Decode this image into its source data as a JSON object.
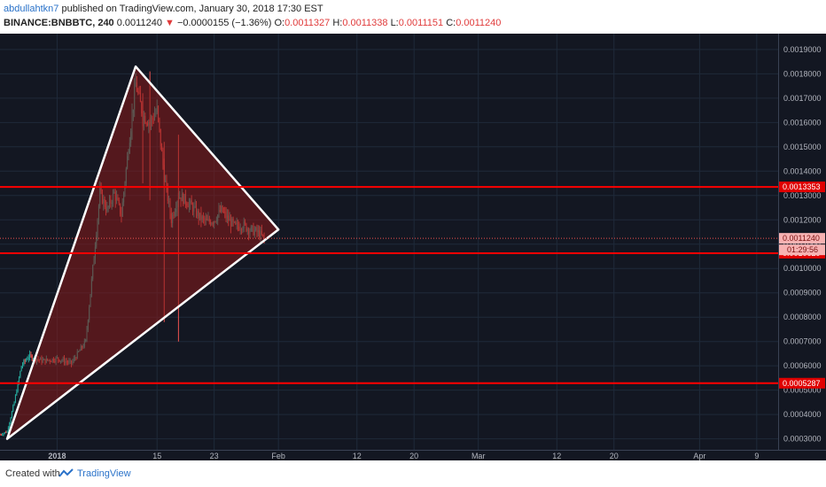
{
  "header": {
    "author": "abdullahtkn7",
    "published_text": "published on TradingView.com, January 30, 2018 17:30 EST",
    "symbol": "BINANCE:BNBBTC, 240",
    "last": "0.0011240",
    "arrow": "▼",
    "change": "−0.0000155 (−1.36%)",
    "o_label": "O:",
    "o_value": "0.0011327",
    "h_label": "H:",
    "h_value": "0.0011338",
    "l_label": "L:",
    "l_value": "0.0011151",
    "c_label": "C:",
    "c_value": "0.0011240"
  },
  "footer": {
    "created_with": "Created with",
    "brand": "TradingView"
  },
  "colors": {
    "background": "#131722",
    "grid": "#1f2a3a",
    "up": "#26a69a",
    "down": "#ef5350",
    "level_line": "#ff0000",
    "triangle_fill": "#8b1a1a",
    "triangle_edge": "#ffffff"
  },
  "chart_data": {
    "type": "candlestick",
    "y_ticks": [
      "0.0019000",
      "0.0018000",
      "0.0017000",
      "0.0016000",
      "0.0015000",
      "0.0014000",
      "0.0013000",
      "0.0012000",
      "0.0011000",
      "0.0010000",
      "0.0009000",
      "0.0008000",
      "0.0007000",
      "0.0006000",
      "0.0005000",
      "0.0004000",
      "0.0003000"
    ],
    "x_ticks": [
      "2018",
      "15",
      "23",
      "Feb",
      "12",
      "20",
      "Mar",
      "12",
      "20",
      "Apr",
      "9"
    ],
    "x_tick_dates": [
      "2018-01-01",
      "2018-01-15",
      "2018-01-23",
      "2018-02-01",
      "2018-02-12",
      "2018-02-20",
      "2018-03-01",
      "2018-03-12",
      "2018-03-20",
      "2018-04-01",
      "2018-04-09"
    ],
    "y_range": [
      0.000255,
      0.001965
    ],
    "x_range": [
      "2017-12-24",
      "2018-04-12"
    ],
    "levels": [
      {
        "value": 0.0013353,
        "label": "0.0013353"
      },
      {
        "value": 0.0010629,
        "label": "0.0010629"
      },
      {
        "value": 0.0005287,
        "label": "0.0005287"
      }
    ],
    "last_price": {
      "value": 0.001124,
      "label": "0.0011240",
      "countdown": "01:29:56"
    },
    "triangle": [
      {
        "date": "2017-12-25",
        "value": 0.0003
      },
      {
        "date": "2018-01-12",
        "value": 0.00183
      },
      {
        "date": "2018-02-01",
        "value": 0.00116
      }
    ],
    "price_path": [
      [
        "2017-12-24",
        0.000318
      ],
      [
        "2017-12-25",
        0.00033
      ],
      [
        "2017-12-26",
        0.00045
      ],
      [
        "2017-12-27",
        0.0006
      ],
      [
        "2017-12-28",
        0.00064
      ],
      [
        "2017-12-30",
        0.00062
      ],
      [
        "2018-01-01",
        0.00063
      ],
      [
        "2018-01-03",
        0.00061
      ],
      [
        "2018-01-05",
        0.0007
      ],
      [
        "2018-01-06",
        0.001
      ],
      [
        "2018-01-07",
        0.00131
      ],
      [
        "2018-01-08",
        0.00124
      ],
      [
        "2018-01-09",
        0.00131
      ],
      [
        "2018-01-10",
        0.00122
      ],
      [
        "2018-01-11",
        0.0015
      ],
      [
        "2018-01-12",
        0.00176
      ],
      [
        "2018-01-13",
        0.00163
      ],
      [
        "2018-01-14",
        0.0016
      ],
      [
        "2018-01-15",
        0.00165
      ],
      [
        "2018-01-16",
        0.00138
      ],
      [
        "2018-01-17",
        0.0012
      ],
      [
        "2018-01-18",
        0.0013
      ],
      [
        "2018-01-19",
        0.00128
      ],
      [
        "2018-01-20",
        0.00125
      ],
      [
        "2018-01-21",
        0.00121
      ],
      [
        "2018-01-22",
        0.00119
      ],
      [
        "2018-01-23",
        0.0012
      ],
      [
        "2018-01-24",
        0.00124
      ],
      [
        "2018-01-25",
        0.0012
      ],
      [
        "2018-01-26",
        0.00117
      ],
      [
        "2018-01-27",
        0.00118
      ],
      [
        "2018-01-28",
        0.00116
      ],
      [
        "2018-01-29",
        0.00115
      ],
      [
        "2018-01-30",
        0.001124
      ]
    ]
  }
}
